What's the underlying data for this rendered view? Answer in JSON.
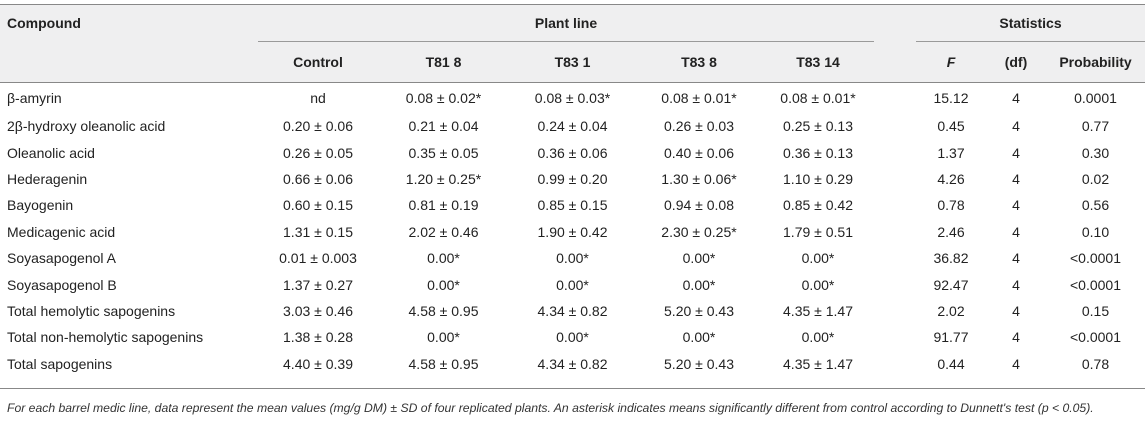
{
  "header": {
    "compound": "Compound",
    "plant_line": "Plant line",
    "statistics": "Statistics",
    "columns": [
      "Control",
      "T81 8",
      "T83 1",
      "T83 8",
      "T83 14",
      "F",
      "(df)",
      "Probability"
    ]
  },
  "rows": [
    {
      "compound": "β-amyrin",
      "control": "nd",
      "t81_8": "0.08 ± 0.02*",
      "t83_1": "0.08 ± 0.03*",
      "t83_8": "0.08 ± 0.01*",
      "t83_14": "0.08 ± 0.01*",
      "f": "15.12",
      "df": "4",
      "p": "0.0001"
    },
    {
      "compound": "2β-hydroxy oleanolic acid",
      "control": "0.20 ± 0.06",
      "t81_8": "0.21 ± 0.04",
      "t83_1": "0.24 ± 0.04",
      "t83_8": "0.26 ± 0.03",
      "t83_14": "0.25 ± 0.13",
      "f": "0.45",
      "df": "4",
      "p": "0.77"
    },
    {
      "compound": "Oleanolic acid",
      "control": "0.26 ± 0.05",
      "t81_8": "0.35 ± 0.05",
      "t83_1": "0.36 ± 0.06",
      "t83_8": "0.40 ± 0.06",
      "t83_14": "0.36 ± 0.13",
      "f": "1.37",
      "df": "4",
      "p": "0.30"
    },
    {
      "compound": "Hederagenin",
      "control": "0.66 ± 0.06",
      "t81_8": "1.20 ± 0.25*",
      "t83_1": "0.99 ± 0.20",
      "t83_8": "1.30 ± 0.06*",
      "t83_14": "1.10 ± 0.29",
      "f": "4.26",
      "df": "4",
      "p": "0.02"
    },
    {
      "compound": "Bayogenin",
      "control": "0.60 ± 0.15",
      "t81_8": "0.81 ± 0.19",
      "t83_1": "0.85 ± 0.15",
      "t83_8": "0.94 ± 0.08",
      "t83_14": "0.85 ± 0.42",
      "f": "0.78",
      "df": "4",
      "p": "0.56"
    },
    {
      "compound": "Medicagenic acid",
      "control": "1.31 ± 0.15",
      "t81_8": "2.02 ± 0.46",
      "t83_1": "1.90 ± 0.42",
      "t83_8": "2.30 ± 0.25*",
      "t83_14": "1.79 ± 0.51",
      "f": "2.46",
      "df": "4",
      "p": "0.10"
    },
    {
      "compound": "Soyasapogenol A",
      "control": "0.01 ± 0.003",
      "t81_8": "0.00*",
      "t83_1": "0.00*",
      "t83_8": "0.00*",
      "t83_14": "0.00*",
      "f": "36.82",
      "df": "4",
      "p": "<0.0001"
    },
    {
      "compound": "Soyasapogenol B",
      "control": "1.37 ± 0.27",
      "t81_8": "0.00*",
      "t83_1": "0.00*",
      "t83_8": "0.00*",
      "t83_14": "0.00*",
      "f": "92.47",
      "df": "4",
      "p": "<0.0001"
    },
    {
      "compound": "Total hemolytic sapogenins",
      "control": "3.03 ± 0.46",
      "t81_8": "4.58 ± 0.95",
      "t83_1": "4.34 ± 0.82",
      "t83_8": "5.20 ± 0.43",
      "t83_14": "4.35 ± 1.47",
      "f": "2.02",
      "df": "4",
      "p": "0.15"
    },
    {
      "compound": "Total non-hemolytic sapogenins",
      "control": "1.38 ± 0.28",
      "t81_8": "0.00*",
      "t83_1": "0.00*",
      "t83_8": "0.00*",
      "t83_14": "0.00*",
      "f": "91.77",
      "df": "4",
      "p": "<0.0001"
    },
    {
      "compound": "Total sapogenins",
      "control": "4.40 ± 0.39",
      "t81_8": "4.58 ± 0.95",
      "t83_1": "4.34 ± 0.82",
      "t83_8": "5.20 ± 0.43",
      "t83_14": "4.35 ± 1.47",
      "f": "0.44",
      "df": "4",
      "p": "0.78"
    }
  ],
  "footnote": "For each barrel medic line, data represent the mean values (mg/g DM) ± SD of four replicated plants. An asterisk indicates means significantly different from control according to Dunnett's test (p < 0.05)."
}
